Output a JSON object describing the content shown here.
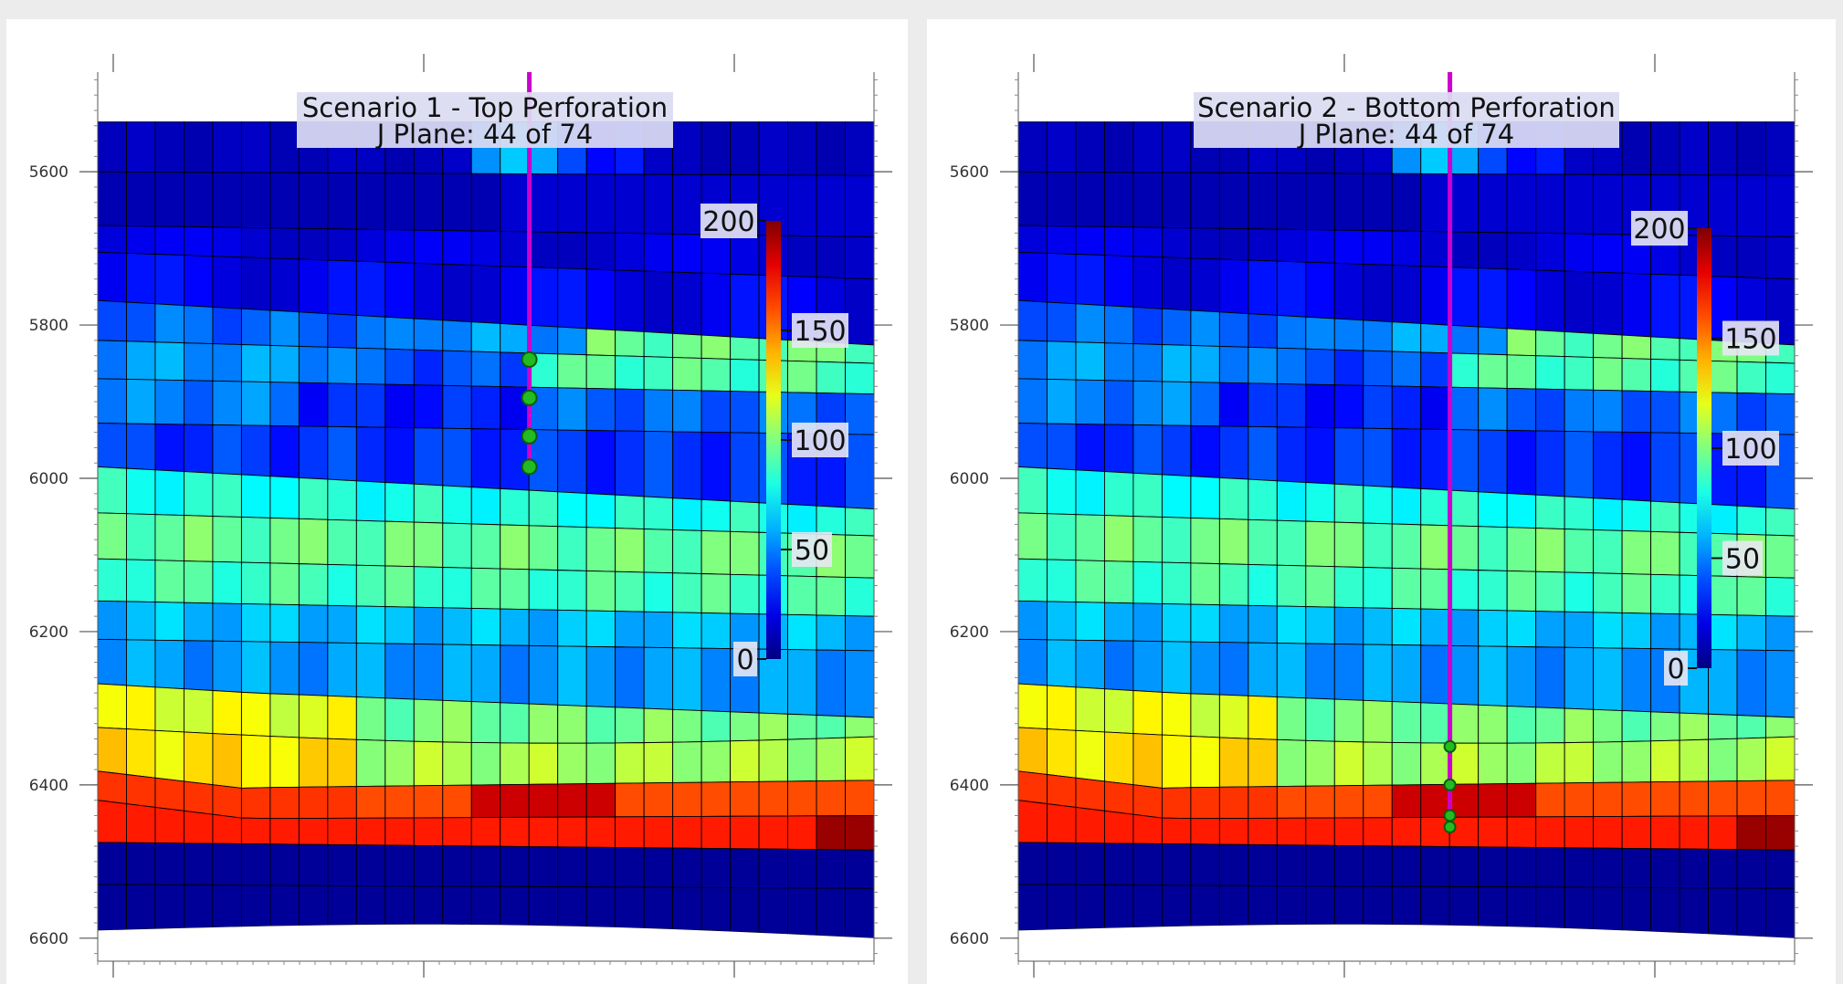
{
  "chart_data": [
    {
      "type": "heatmap",
      "title": "Scenario 1 - Top Perforation",
      "subtitle": "J Plane: 44 of 74",
      "xlabel": "",
      "ylabel": "",
      "y_axis": {
        "ticks": [
          5600,
          5800,
          6000,
          6200,
          6400,
          6600
        ],
        "range": [
          5470,
          6630
        ],
        "inverted": true
      },
      "colorbar": {
        "min": 0,
        "max": 200,
        "ticks": [
          0,
          50,
          100,
          150,
          200
        ]
      },
      "well": {
        "color": "#cc00cc",
        "perforation_depths": [
          5845,
          5895,
          5945,
          5985
        ]
      },
      "grid": true
    },
    {
      "type": "heatmap",
      "title": "Scenario 2 - Bottom Perforation",
      "subtitle": "J Plane: 44 of 74",
      "xlabel": "",
      "ylabel": "",
      "y_axis": {
        "ticks": [
          5600,
          5800,
          6000,
          6200,
          6400,
          6600
        ],
        "range": [
          5470,
          6630
        ],
        "inverted": true
      },
      "colorbar": {
        "min": 0,
        "max": 200,
        "ticks": [
          0,
          50,
          100,
          150,
          200
        ]
      },
      "well": {
        "color": "#cc00cc",
        "perforation_depths": [
          6350,
          6400,
          6440,
          6455
        ]
      },
      "grid": true
    }
  ]
}
